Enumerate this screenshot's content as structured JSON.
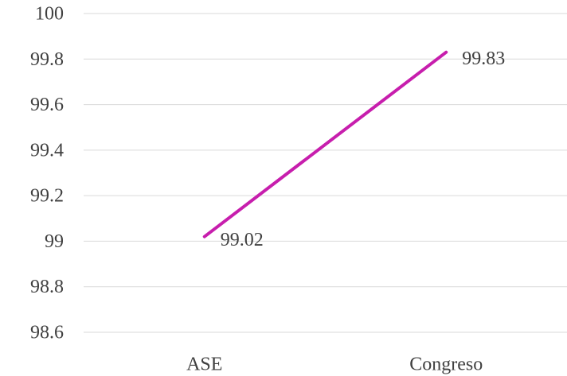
{
  "chart_data": {
    "type": "line",
    "categories": [
      "ASE",
      "Congreso"
    ],
    "values": [
      99.02,
      99.83
    ],
    "color": "#c71ead",
    "ylim": [
      98.6,
      100
    ],
    "yticks": [
      98.6,
      98.8,
      99,
      99.2,
      99.4,
      99.6,
      99.8,
      100
    ],
    "grid": true,
    "data_labels": true
  }
}
